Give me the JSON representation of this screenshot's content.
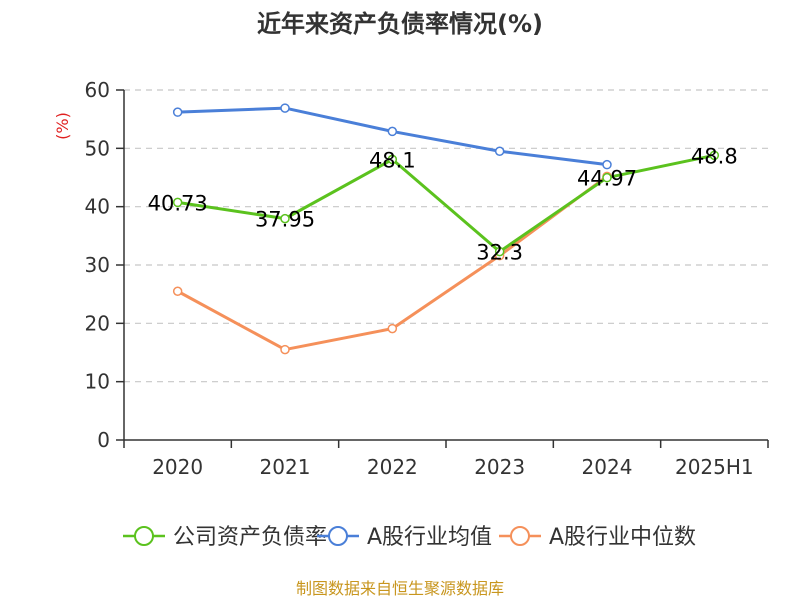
{
  "chart_data": {
    "type": "line",
    "title": "近年来资产负债率情况(%)",
    "ylabel": "(%)",
    "xlabel": "",
    "categories": [
      "2020",
      "2021",
      "2022",
      "2023",
      "2024",
      "2025H1"
    ],
    "ylim": [
      0,
      60
    ],
    "yticks": [
      "0",
      "10",
      "20",
      "30",
      "40",
      "50",
      "60"
    ],
    "grid": true,
    "legend_position": "bottom",
    "series": [
      {
        "name": "公司资产负债率",
        "color": "#5bc21e",
        "values": [
          40.73,
          37.95,
          48.1,
          32.3,
          44.97,
          48.8
        ],
        "labels": [
          "40.73",
          "37.95",
          "48.1",
          "32.3",
          "44.97",
          "48.8"
        ]
      },
      {
        "name": "A股行业均值",
        "color": "#4a7fd8",
        "values": [
          56.2,
          56.9,
          52.9,
          49.5,
          47.2,
          null
        ],
        "labels": []
      },
      {
        "name": "A股行业中位数",
        "color": "#f5905a",
        "values": [
          25.5,
          15.5,
          19.1,
          31.6,
          45.2,
          null
        ],
        "labels": []
      }
    ]
  },
  "footer": {
    "source": "制图数据来自恒生聚源数据库"
  }
}
